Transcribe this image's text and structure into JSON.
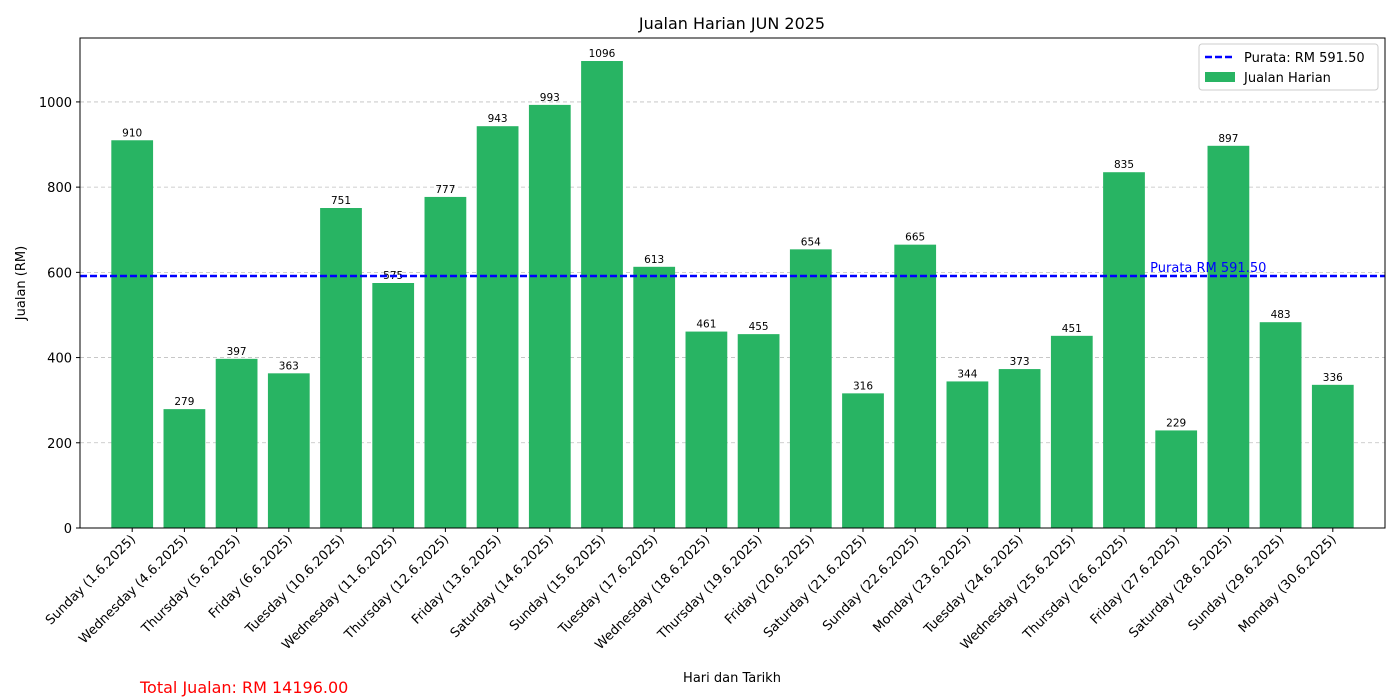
{
  "chart_data": {
    "type": "bar",
    "title": "Jualan Harian JUN 2025",
    "xlabel": "Hari dan Tarikh",
    "ylabel": "Jualan (RM)",
    "ylim": [
      0,
      1150
    ],
    "yticks": [
      0,
      200,
      400,
      600,
      800,
      1000
    ],
    "grid": "y-dashed",
    "legend_position": "top-right",
    "colors": {
      "bar": "#28b463",
      "average_line": "#0000ff",
      "total_text": "#ff0000"
    },
    "categories": [
      "Sunday (1.6.2025)",
      "Wednesday (4.6.2025)",
      "Thursday (5.6.2025)",
      "Friday (6.6.2025)",
      "Tuesday (10.6.2025)",
      "Wednesday (11.6.2025)",
      "Thursday (12.6.2025)",
      "Friday (13.6.2025)",
      "Saturday (14.6.2025)",
      "Sunday (15.6.2025)",
      "Tuesday (17.6.2025)",
      "Wednesday (18.6.2025)",
      "Thursday (19.6.2025)",
      "Friday (20.6.2025)",
      "Saturday (21.6.2025)",
      "Sunday (22.6.2025)",
      "Monday (23.6.2025)",
      "Tuesday (24.6.2025)",
      "Wednesday (25.6.2025)",
      "Thursday (26.6.2025)",
      "Friday (27.6.2025)",
      "Saturday (28.6.2025)",
      "Sunday (29.6.2025)",
      "Monday (30.6.2025)"
    ],
    "series": [
      {
        "name": "Jualan Harian",
        "values": [
          910,
          279,
          397,
          363,
          751,
          575,
          777,
          943,
          993,
          1096,
          613,
          461,
          455,
          654,
          316,
          665,
          344,
          373,
          451,
          835,
          229,
          897,
          483,
          336
        ]
      }
    ],
    "average": {
      "value": 591.5,
      "legend_label": "Purata: RM 591.50",
      "annotation": "Purata RM 591.50"
    },
    "total_text": "Total Jualan: RM 14196.00"
  }
}
